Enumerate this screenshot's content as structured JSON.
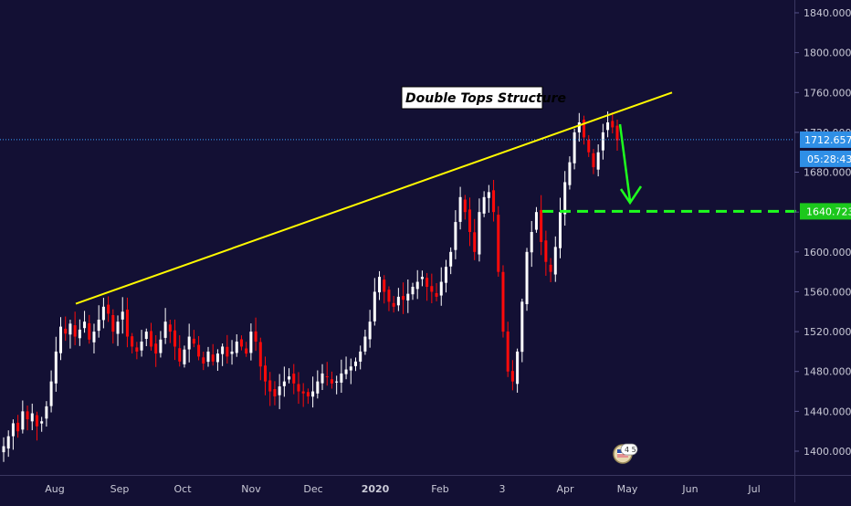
{
  "chart_data": {
    "type": "candlestick",
    "title": "",
    "annotation": "Double Tops Structure",
    "x_axis": {
      "tick_labels": [
        "Aug",
        "Sep",
        "Oct",
        "Nov",
        "Dec",
        "2020",
        "Feb",
        "3",
        "Apr",
        "May",
        "Jun",
        "Jul"
      ]
    },
    "y_axis": {
      "range": [
        1380,
        1850
      ],
      "tick_labels": [
        "1840.000",
        "1800.000",
        "1760.000",
        "1720.000",
        "1680.000",
        "1640.000",
        "1600.000",
        "1560.000",
        "1520.000",
        "1480.000",
        "1440.000",
        "1400.000"
      ]
    },
    "current_price": {
      "value": 1712.657,
      "label": "1712.657",
      "countdown": "05:28:43"
    },
    "target_level": {
      "value": 1640.723,
      "label": "1640.723"
    },
    "trend_line": {
      "from": [
        1548,
        0.105
      ],
      "to": [
        1760,
        0.79
      ]
    },
    "approx_closes": [
      1405,
      1415,
      1428,
      1420,
      1440,
      1432,
      1438,
      1425,
      1430,
      1445,
      1470,
      1500,
      1525,
      1518,
      1528,
      1515,
      1522,
      1530,
      1512,
      1520,
      1532,
      1545,
      1538,
      1520,
      1530,
      1540,
      1515,
      1505,
      1500,
      1510,
      1520,
      1505,
      1498,
      1512,
      1530,
      1520,
      1505,
      1490,
      1502,
      1515,
      1508,
      1495,
      1488,
      1500,
      1490,
      1498,
      1505,
      1495,
      1500,
      1510,
      1505,
      1498,
      1520,
      1510,
      1485,
      1470,
      1460,
      1455,
      1465,
      1470,
      1475,
      1468,
      1460,
      1458,
      1455,
      1460,
      1470,
      1478,
      1475,
      1468,
      1470,
      1478,
      1482,
      1485,
      1490,
      1500,
      1515,
      1530,
      1560,
      1575,
      1560,
      1550,
      1545,
      1555,
      1552,
      1558,
      1565,
      1570,
      1575,
      1565,
      1560,
      1555,
      1570,
      1585,
      1600,
      1630,
      1655,
      1640,
      1620,
      1600,
      1640,
      1655,
      1660,
      1640,
      1580,
      1520,
      1480,
      1470,
      1500,
      1550,
      1600,
      1620,
      1640,
      1610,
      1590,
      1580,
      1605,
      1640,
      1670,
      1690,
      1720,
      1730,
      1715,
      1700,
      1685,
      1700,
      1720,
      1730,
      1725,
      1712
    ]
  },
  "colors": {
    "background": "#131034",
    "up_candle": "#ffffff",
    "down_candle": "#ff0a0a",
    "trend_line": "#fffa00",
    "target_line": "#1eff1e",
    "arrow": "#1eff1e",
    "current_price_line": "#3aa1ff",
    "current_price_label_bg": "#2f8fe6",
    "target_label_bg": "#1cc81c",
    "axis_text": "#c9c9d6"
  },
  "icons": {
    "publisher_badge": "flag-badge-icon"
  }
}
